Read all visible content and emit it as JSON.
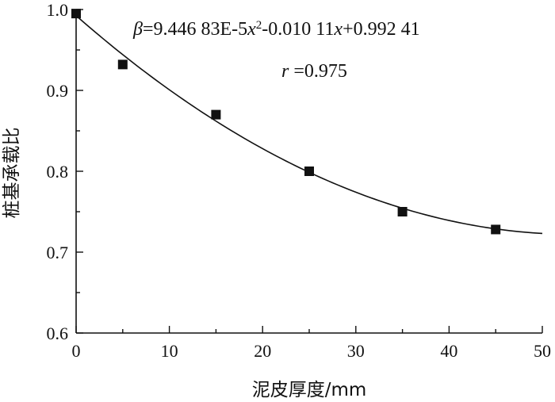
{
  "chart_data": {
    "type": "scatter",
    "xlabel": "泥皮厚度/mm",
    "ylabel": "桩基承载比",
    "xlim": [
      0,
      50
    ],
    "ylim": [
      0.6,
      1.0
    ],
    "x_ticks": [
      "0",
      "10",
      "20",
      "30",
      "40",
      "50"
    ],
    "y_ticks": [
      "0.6",
      "0.7",
      "0.8",
      "0.9",
      "1.0"
    ],
    "grid": false,
    "series": [
      {
        "marker": "filled-square",
        "color": "#111111",
        "x": [
          0,
          5,
          15,
          25,
          35,
          45
        ],
        "y": [
          0.995,
          0.932,
          0.87,
          0.8,
          0.75,
          0.728
        ]
      }
    ],
    "fit": {
      "type": "quadratic",
      "coefficients": {
        "a": 9.44683e-05,
        "b": -0.01011,
        "c": 0.99241
      },
      "x_range": [
        0,
        50
      ],
      "color": "#111111"
    },
    "annotations": {
      "equation": {
        "beta": "β",
        "part1": "=9.446 83E-5",
        "x1": "x",
        "exp": "2",
        "part2": "-0.010 11",
        "x2": "x",
        "part3": "+0.992 41"
      },
      "r_line": {
        "r": "r",
        "value": " =0.975"
      }
    }
  }
}
